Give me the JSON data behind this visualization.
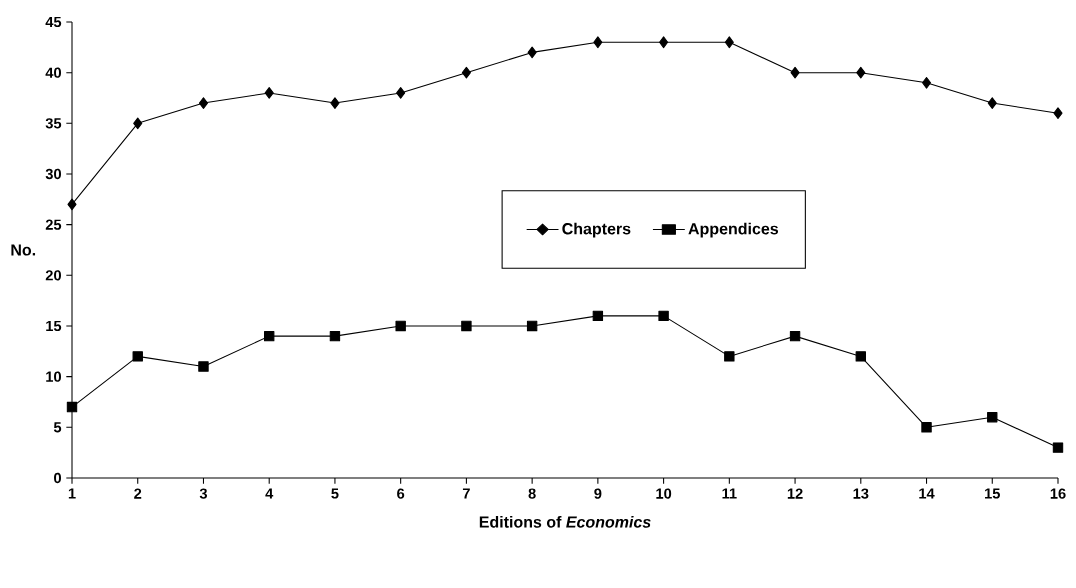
{
  "chart_data": {
    "type": "line",
    "xlabel": "Editions of *Economics*",
    "ylabel": "No.",
    "categories": [
      "1",
      "2",
      "3",
      "4",
      "5",
      "6",
      "7",
      "8",
      "9",
      "10",
      "11",
      "12",
      "13",
      "14",
      "15",
      "16"
    ],
    "series": [
      {
        "name": "Chapters",
        "color": "#000000",
        "marker": "diamond",
        "values": [
          27,
          35,
          37,
          38,
          37,
          38,
          40,
          42,
          43,
          43,
          43,
          40,
          40,
          39,
          37,
          36
        ]
      },
      {
        "name": "Appendices",
        "color": "#000000",
        "marker": "square",
        "values": [
          7,
          12,
          11,
          14,
          14,
          15,
          15,
          15,
          16,
          16,
          12,
          14,
          12,
          5,
          6,
          3
        ]
      }
    ],
    "ylim": [
      0,
      45
    ],
    "yticks": [
      0,
      5,
      10,
      15,
      20,
      25,
      30,
      35,
      40,
      45
    ],
    "grid": false,
    "legend": "center",
    "line_style": "solid"
  }
}
